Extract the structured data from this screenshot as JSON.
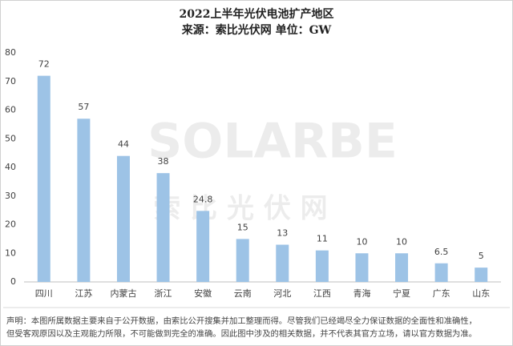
{
  "chart_data": {
    "type": "bar",
    "title": "2022上半年光伏电池扩产地区",
    "subtitle": "来源：索比光伏网 单位：GW",
    "categories": [
      "四川",
      "江苏",
      "内蒙古",
      "浙江",
      "安徽",
      "云南",
      "河北",
      "江西",
      "青海",
      "宁夏",
      "广东",
      "山东"
    ],
    "values": [
      72,
      57,
      44,
      38,
      24.8,
      15,
      13,
      11,
      10,
      10,
      6.5,
      5
    ],
    "color": "#9dc3e6",
    "ylim": [
      0,
      80
    ],
    "yticks": [
      0,
      10,
      20,
      30,
      40,
      50,
      60,
      70,
      80
    ],
    "grid": false,
    "watermark": [
      "SOLARBE",
      "索 比 光 伏 网"
    ],
    "notes": [
      "声明：本图所属数据主要来自于公开数据，由索比公开搜集并加工整理而得。尽管我们已经竭尽全力保证数据的全面性和准确性，",
      "但受客观原因以及主观能力所限，不可能做到完全的准确。因此图中涉及的相关数据，并不代表其官方立场，请以官方数据为准。"
    ]
  }
}
